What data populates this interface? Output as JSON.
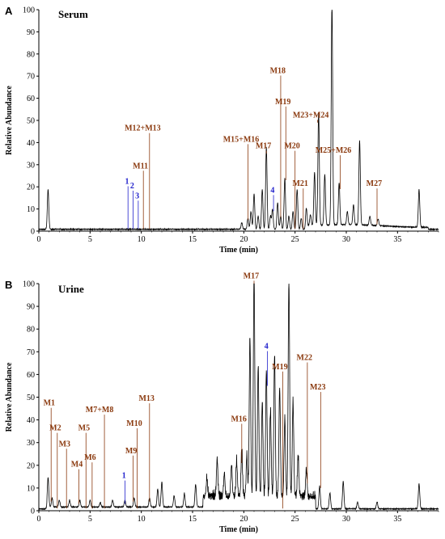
{
  "chart_data": [
    {
      "panel_letter": "A",
      "title": "Serum",
      "type": "line",
      "xlabel": "Time (min)",
      "ylabel": "Relative Abundance",
      "xlim": [
        0,
        39
      ],
      "ylim": [
        0,
        100
      ],
      "xticks": [
        0,
        5,
        10,
        15,
        20,
        25,
        30,
        35
      ],
      "yticks": [
        0,
        10,
        20,
        30,
        40,
        50,
        60,
        70,
        80,
        90,
        100
      ],
      "peaks": [
        [
          0.9,
          18
        ],
        [
          19.8,
          3
        ],
        [
          20.4,
          5
        ],
        [
          20.7,
          8
        ],
        [
          21.0,
          16
        ],
        [
          21.4,
          6
        ],
        [
          21.8,
          18
        ],
        [
          22.2,
          37
        ],
        [
          22.6,
          6
        ],
        [
          22.8,
          9
        ],
        [
          23.3,
          12
        ],
        [
          23.6,
          6
        ],
        [
          24.0,
          23
        ],
        [
          24.4,
          6
        ],
        [
          24.8,
          8
        ],
        [
          25.2,
          18
        ],
        [
          25.6,
          5
        ],
        [
          26.1,
          8
        ],
        [
          26.5,
          5
        ],
        [
          26.9,
          24
        ],
        [
          27.3,
          51
        ],
        [
          27.9,
          23
        ],
        [
          28.6,
          100
        ],
        [
          29.3,
          19
        ],
        [
          30.1,
          6
        ],
        [
          30.7,
          9
        ],
        [
          31.3,
          38
        ],
        [
          32.3,
          4
        ],
        [
          33.1,
          3
        ],
        [
          37.1,
          17
        ]
      ],
      "annotations": [
        {
          "label": "1",
          "color": "#2222cc",
          "x": 8.7,
          "ylabel": 21
        },
        {
          "label": "2",
          "color": "#2222cc",
          "x": 9.2,
          "ylabel": 19
        },
        {
          "label": "3",
          "color": "#2222cc",
          "x": 9.7,
          "ylabel": 14.5
        },
        {
          "label": "M11",
          "color": "#8B3A0F",
          "x": 10.2,
          "ylabel": 28
        },
        {
          "label": "M12+M13",
          "color": "#8B3A0F",
          "x": 10.8,
          "ylabel": 45
        },
        {
          "label": "M15+M16",
          "color": "#8B3A0F",
          "x": 20.4,
          "ylabel": 40
        },
        {
          "label": "M17",
          "color": "#8B3A0F",
          "x": 22.2,
          "ylabel": 37
        },
        {
          "label": "4",
          "color": "#2222cc",
          "x": 22.9,
          "ylabel": 17
        },
        {
          "label": "M18",
          "color": "#8B3A0F",
          "x": 23.6,
          "ylabel": 71
        },
        {
          "label": "M19",
          "color": "#8B3A0F",
          "x": 24.1,
          "ylabel": 57
        },
        {
          "label": "M20",
          "color": "#8B3A0F",
          "x": 25.0,
          "ylabel": 37
        },
        {
          "label": "M21",
          "color": "#8B3A0F",
          "x": 25.8,
          "ylabel": 20
        },
        {
          "label": "M23+M24",
          "color": "#8B3A0F",
          "x": 27.2,
          "ylabel": 51
        },
        {
          "label": "M25+M26",
          "color": "#8B3A0F",
          "x": 29.4,
          "ylabel": 35
        },
        {
          "label": "M27",
          "color": "#8B3A0F",
          "x": 33.0,
          "ylabel": 20
        }
      ]
    },
    {
      "panel_letter": "B",
      "title": "Urine",
      "type": "line",
      "xlabel": "Time (min)",
      "ylabel": "Relative Abundance",
      "xlim": [
        0,
        39
      ],
      "ylim": [
        0,
        100
      ],
      "xticks": [
        0,
        5,
        10,
        15,
        20,
        25,
        30,
        35
      ],
      "yticks": [
        0,
        10,
        20,
        30,
        40,
        50,
        60,
        70,
        80,
        90,
        100
      ],
      "peaks": [
        [
          0.9,
          13
        ],
        [
          1.3,
          4
        ],
        [
          2.0,
          3
        ],
        [
          3.0,
          3
        ],
        [
          4.0,
          3
        ],
        [
          5.0,
          3
        ],
        [
          6.0,
          2
        ],
        [
          7.2,
          3
        ],
        [
          8.4,
          3
        ],
        [
          9.3,
          4
        ],
        [
          10.8,
          4
        ],
        [
          11.6,
          8
        ],
        [
          12.0,
          11
        ],
        [
          13.2,
          5
        ],
        [
          14.2,
          6
        ],
        [
          15.3,
          10
        ],
        [
          16.4,
          8
        ],
        [
          17.4,
          16
        ],
        [
          18.1,
          10
        ],
        [
          18.8,
          14
        ],
        [
          19.3,
          16
        ],
        [
          19.8,
          21
        ],
        [
          20.3,
          18
        ],
        [
          20.6,
          70
        ],
        [
          21.0,
          100
        ],
        [
          21.4,
          58
        ],
        [
          21.8,
          42
        ],
        [
          22.2,
          55
        ],
        [
          22.6,
          38
        ],
        [
          23.0,
          62
        ],
        [
          23.5,
          48
        ],
        [
          24.0,
          35
        ],
        [
          24.4,
          95
        ],
        [
          24.8,
          42
        ],
        [
          25.3,
          18
        ],
        [
          26.1,
          12
        ],
        [
          27.4,
          10
        ],
        [
          28.4,
          7
        ],
        [
          29.7,
          12
        ],
        [
          31.1,
          3
        ],
        [
          33.0,
          3
        ],
        [
          37.1,
          11
        ]
      ],
      "annotations": [
        {
          "label": "M1",
          "color": "#8B3A0F",
          "x": 1.2,
          "ylabel": 46
        },
        {
          "label": "M2",
          "color": "#8B3A0F",
          "x": 1.8,
          "ylabel": 35
        },
        {
          "label": "M3",
          "color": "#8B3A0F",
          "x": 2.7,
          "ylabel": 28
        },
        {
          "label": "M4",
          "color": "#8B3A0F",
          "x": 3.9,
          "ylabel": 19
        },
        {
          "label": "M5",
          "color": "#8B3A0F",
          "x": 4.6,
          "ylabel": 35
        },
        {
          "label": "M6",
          "color": "#8B3A0F",
          "x": 5.2,
          "ylabel": 22
        },
        {
          "label": "M7+M8",
          "color": "#8B3A0F",
          "x": 6.4,
          "ylabel": 43
        },
        {
          "label": "1",
          "color": "#2222cc",
          "x": 8.4,
          "ylabel": 14
        },
        {
          "label": "M9",
          "color": "#8B3A0F",
          "x": 9.2,
          "ylabel": 25
        },
        {
          "label": "M10",
          "color": "#8B3A0F",
          "x": 9.6,
          "ylabel": 37
        },
        {
          "label": "M13",
          "color": "#8B3A0F",
          "x": 10.8,
          "ylabel": 48
        },
        {
          "label": "M16",
          "color": "#8B3A0F",
          "x": 19.8,
          "ylabel": 39
        },
        {
          "label": "M17",
          "color": "#8B3A0F",
          "x": 21.0,
          "ylabel": 102
        },
        {
          "label": "4",
          "color": "#2222cc",
          "x": 22.3,
          "ylabel": 71
        },
        {
          "label": "M19",
          "color": "#8B3A0F",
          "x": 23.8,
          "ylabel": 62
        },
        {
          "label": "M22",
          "color": "#8B3A0F",
          "x": 26.2,
          "ylabel": 66
        },
        {
          "label": "M23",
          "color": "#8B3A0F",
          "x": 27.5,
          "ylabel": 53
        }
      ]
    }
  ]
}
